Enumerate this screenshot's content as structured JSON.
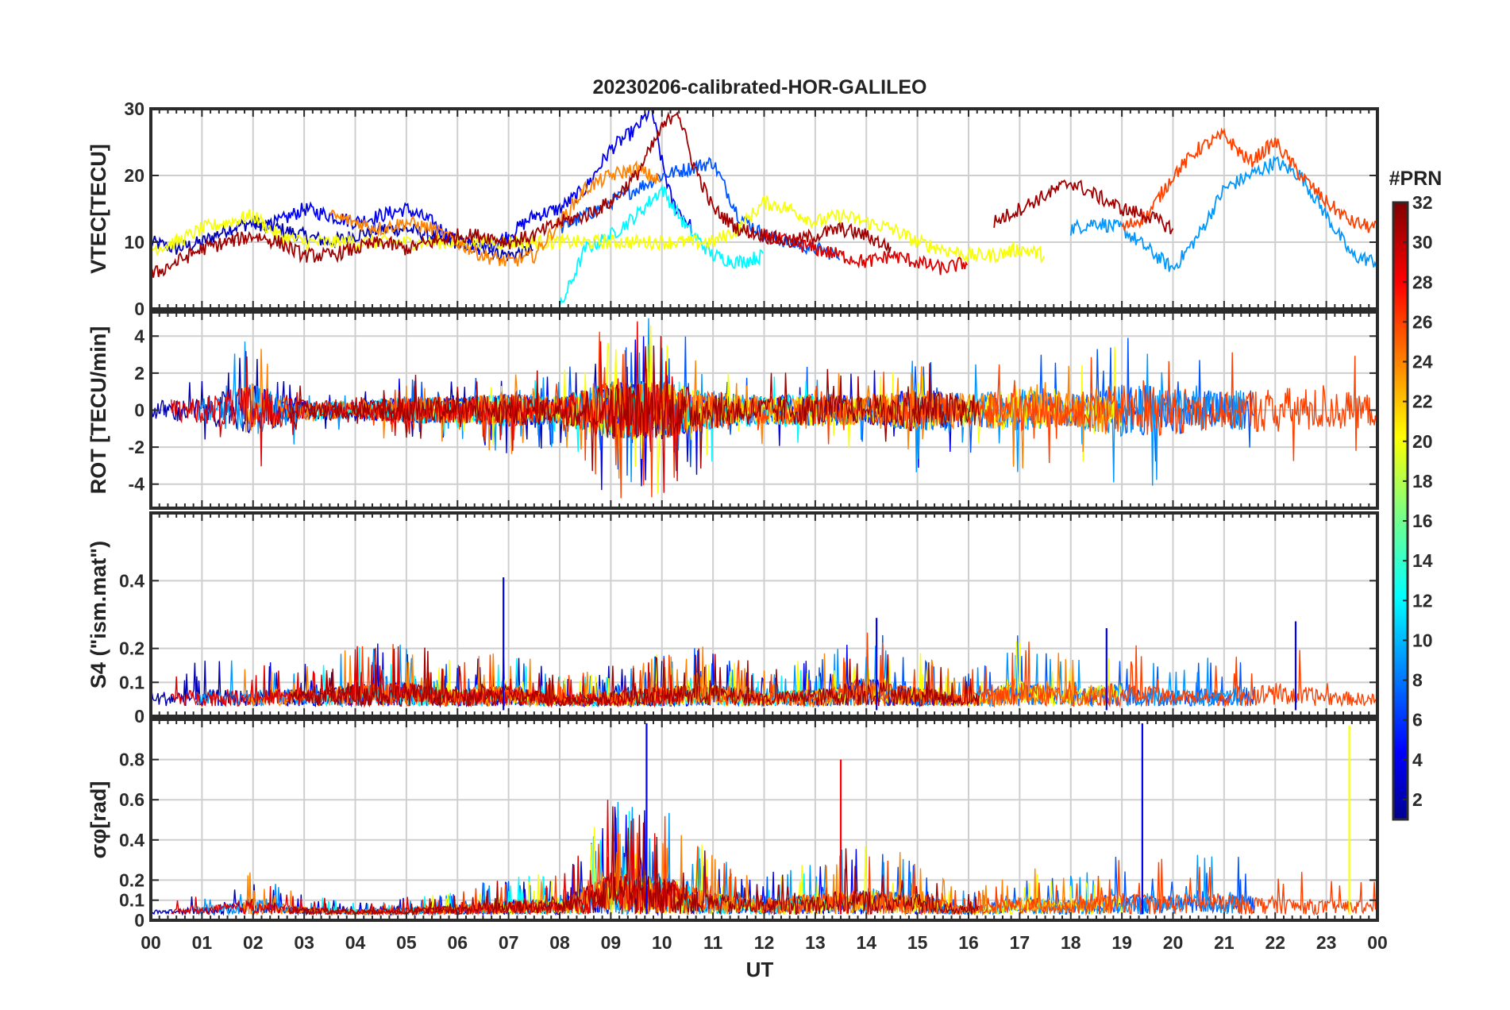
{
  "figure": {
    "title": "20230206-calibrated-HOR-GALILEO",
    "xlabel": "UT",
    "x_tick_labels": [
      "00",
      "01",
      "02",
      "03",
      "04",
      "05",
      "06",
      "07",
      "08",
      "09",
      "10",
      "11",
      "12",
      "13",
      "14",
      "15",
      "16",
      "17",
      "18",
      "19",
      "20",
      "21",
      "22",
      "23",
      "00"
    ],
    "colorbar": {
      "label": "#PRN",
      "range": [
        1,
        32
      ],
      "tick_labels": [
        "2",
        "4",
        "6",
        "8",
        "10",
        "12",
        "14",
        "16",
        "18",
        "20",
        "22",
        "24",
        "26",
        "28",
        "30",
        "32"
      ],
      "colors": [
        "#00008f",
        "#0000ff",
        "#0080ff",
        "#00ffff",
        "#80ff80",
        "#ffff00",
        "#ff8000",
        "#ff0000",
        "#800000"
      ]
    }
  },
  "chart_data": [
    {
      "type": "line",
      "name": "vtec",
      "ylabel": "VTEC[TECU]",
      "ylim": [
        0,
        30
      ],
      "yticks": [
        0,
        10,
        20,
        30
      ],
      "x_range_hours": [
        0,
        24
      ],
      "series": [
        {
          "prn": 2,
          "x": [
            0,
            0.5,
            1,
            1.5,
            2,
            2.5,
            3,
            3.5,
            4,
            4.5,
            5,
            5.5,
            6,
            6.5,
            7,
            7.5
          ],
          "values": [
            10,
            9,
            10,
            12,
            13,
            12,
            11,
            10,
            11,
            12,
            12,
            11,
            10,
            9,
            8,
            9
          ]
        },
        {
          "prn": 4,
          "x": [
            2,
            2.5,
            3,
            3.5,
            4,
            4.5,
            5,
            5.5,
            6,
            6.5,
            7,
            7.5,
            8,
            8.5,
            9,
            9.5,
            9.8,
            10,
            10.2,
            10.6
          ],
          "values": [
            12,
            13,
            15,
            14,
            13,
            14,
            15,
            13,
            10,
            9,
            11,
            14,
            15,
            18,
            24,
            27,
            30,
            22,
            16,
            12
          ]
        },
        {
          "prn": 7,
          "x": [
            8,
            8.5,
            9,
            9.5,
            10,
            10.5,
            11,
            11.5,
            12,
            12.5,
            13,
            13.5
          ],
          "values": [
            12,
            14,
            16,
            18,
            20,
            21,
            22,
            14,
            11,
            10,
            9,
            8
          ]
        },
        {
          "prn": 9,
          "x": [
            18,
            18.5,
            19,
            19.5,
            20,
            20.5,
            21,
            21.5,
            22,
            22.5,
            23,
            23.5,
            24
          ],
          "values": [
            12,
            13,
            12,
            9,
            6,
            11,
            18,
            20,
            22,
            20,
            14,
            8,
            7
          ]
        },
        {
          "prn": 12,
          "x": [
            8,
            8.5,
            9,
            9.5,
            10,
            10.5,
            11,
            11.5,
            12
          ],
          "values": [
            0,
            9,
            11,
            14,
            18,
            12,
            8,
            7,
            8
          ]
        },
        {
          "prn": 20,
          "x": [
            0,
            0.5,
            1,
            1.5,
            2,
            2.5,
            3,
            11,
            11.5,
            12,
            12.5,
            13,
            13.5,
            14,
            14.5,
            15,
            15.5,
            16,
            16.5,
            17,
            17.5
          ],
          "values": [
            9,
            10,
            12,
            13,
            14,
            11,
            10,
            10,
            12,
            16,
            15,
            13,
            14,
            13,
            12,
            10,
            9,
            8,
            8,
            9,
            8
          ]
        },
        {
          "prn": 24,
          "x": [
            3.5,
            4,
            4.5,
            5,
            5.5,
            6,
            6.5,
            7,
            7.5,
            8,
            8.5,
            9,
            9.5,
            10
          ],
          "values": [
            14,
            13,
            12,
            13,
            12,
            10,
            8,
            7,
            8,
            13,
            18,
            20,
            21,
            19
          ]
        },
        {
          "prn": 26,
          "x": [
            19,
            19.5,
            20,
            20.5,
            21,
            21.5,
            22,
            22.5,
            23,
            23.5,
            24
          ],
          "values": [
            12,
            14,
            20,
            24,
            26,
            22,
            25,
            20,
            16,
            13,
            12
          ]
        },
        {
          "prn": 29,
          "x": [
            12,
            12.5,
            13,
            13.5,
            14,
            14.5,
            15,
            15.5,
            16
          ],
          "values": [
            11,
            10,
            9,
            8,
            7,
            8,
            7,
            6,
            7
          ]
        },
        {
          "prn": 31,
          "x": [
            0,
            0.5,
            1,
            1.5,
            2,
            2.5,
            3,
            3.5,
            4,
            4.5,
            5,
            5.5,
            6,
            6.5,
            7,
            7.5,
            8,
            8.5,
            9,
            9.5,
            10,
            10.3,
            10.6,
            11,
            11.5,
            12,
            12.5,
            13,
            13.5,
            14,
            14.5
          ],
          "values": [
            5,
            7,
            9,
            10,
            11,
            10,
            8,
            8,
            9,
            10,
            9,
            10,
            11,
            11,
            10,
            11,
            13,
            14,
            16,
            20,
            27,
            30,
            22,
            15,
            12,
            11,
            10,
            11,
            12,
            11,
            9
          ]
        },
        {
          "prn": 31,
          "x": [
            16.5,
            17,
            17.5,
            18,
            18.5,
            19,
            19.5,
            20
          ],
          "values": [
            13,
            15,
            17,
            19,
            17,
            15,
            14,
            12
          ]
        }
      ]
    },
    {
      "type": "line",
      "name": "rot",
      "ylabel": "ROT [TECU/min]",
      "ylim": [
        -5.3,
        5.3
      ],
      "yticks": [
        -4,
        -2,
        0,
        2,
        4
      ],
      "x_range_hours": [
        0,
        24
      ],
      "envelope": {
        "x": [
          0,
          1,
          2,
          3,
          4,
          5,
          6,
          7,
          8,
          9,
          10,
          11,
          12,
          13,
          14,
          15,
          16,
          17,
          18,
          19,
          20,
          21,
          22,
          23,
          24
        ],
        "values": [
          1.2,
          1.8,
          4.5,
          1.2,
          1.0,
          2.0,
          1.8,
          2.5,
          2.0,
          5.0,
          5.0,
          3.0,
          2.0,
          2.5,
          2.0,
          3.5,
          2.5,
          3.5,
          2.5,
          4.5,
          4.0,
          3.0,
          4.0,
          3.5,
          2.5
        ]
      }
    },
    {
      "type": "line",
      "name": "s4",
      "ylabel": "S4 (\"ism.mat\")",
      "ylim": [
        0,
        0.6
      ],
      "yticks": [
        0,
        0.1,
        0.2,
        0.4
      ],
      "x_range_hours": [
        0,
        24
      ],
      "envelope": {
        "x": [
          0,
          1,
          2,
          3,
          4,
          5,
          6,
          7,
          8,
          9,
          10,
          11,
          12,
          13,
          14,
          15,
          16,
          17,
          18,
          19,
          20,
          21,
          22,
          23,
          24
        ],
        "values": [
          0.12,
          0.14,
          0.14,
          0.14,
          0.18,
          0.2,
          0.14,
          0.18,
          0.09,
          0.12,
          0.17,
          0.18,
          0.12,
          0.14,
          0.24,
          0.16,
          0.1,
          0.22,
          0.14,
          0.2,
          0.14,
          0.15,
          0.2,
          0.14,
          0.1
        ]
      },
      "annotations": [
        {
          "x": 6.9,
          "value": 0.41
        },
        {
          "x": 14.2,
          "value": 0.29
        },
        {
          "x": 18.7,
          "value": 0.26
        },
        {
          "x": 22.4,
          "value": 0.28
        }
      ]
    },
    {
      "type": "line",
      "name": "sigma_phi",
      "ylabel": "σφ[rad]",
      "ylim": [
        0,
        1
      ],
      "yticks": [
        0,
        0.1,
        0.2,
        0.4,
        0.6,
        0.8
      ],
      "x_range_hours": [
        0,
        24
      ],
      "envelope": {
        "x": [
          0,
          1,
          2,
          3,
          4,
          5,
          6,
          7,
          8,
          9,
          10,
          11,
          12,
          13,
          14,
          15,
          16,
          17,
          18,
          19,
          20,
          21,
          22,
          23,
          24
        ],
        "values": [
          0.06,
          0.1,
          0.22,
          0.1,
          0.06,
          0.09,
          0.12,
          0.2,
          0.2,
          0.6,
          0.55,
          0.3,
          0.2,
          0.3,
          0.35,
          0.3,
          0.1,
          0.25,
          0.2,
          0.3,
          0.3,
          0.3,
          0.25,
          0.2,
          0.2
        ]
      },
      "annotations": [
        {
          "x": 9.7,
          "value": 0.98
        },
        {
          "x": 13.5,
          "value": 0.8
        },
        {
          "x": 19.4,
          "value": 0.98
        },
        {
          "x": 23.45,
          "value": 0.97
        }
      ]
    }
  ]
}
